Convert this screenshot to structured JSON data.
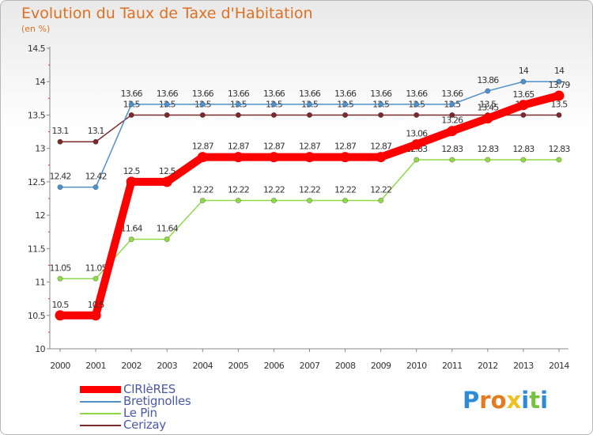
{
  "header": {
    "title": "Evolution du Taux de Taxe d'Habitation",
    "subtitle": "(en %)"
  },
  "brand": {
    "text": "Proxiti",
    "letter_colors": [
      "#2e8bd8",
      "#e87a1e",
      "#e87a1e",
      "#f0c020",
      "#2e8bd8",
      "#7ac142",
      "#2e8bd8"
    ]
  },
  "chart_data": {
    "type": "line",
    "title": "Evolution du Taux de Taxe d'Habitation",
    "ylabel": "(en %)",
    "xlabel": "",
    "ylim": [
      10,
      14.5
    ],
    "yticks": [
      "10",
      "10.5",
      "11",
      "11.5",
      "12",
      "12.5",
      "13",
      "13.5",
      "14",
      "14.5"
    ],
    "categories": [
      "2000",
      "2001",
      "2002",
      "2003",
      "2004",
      "2005",
      "2006",
      "2007",
      "2008",
      "2009",
      "2010",
      "2011",
      "2012",
      "2013",
      "2014"
    ],
    "series": [
      {
        "name": "Cerizay",
        "color": "#7a2a2a",
        "values": [
          13.1,
          13.1,
          13.5,
          13.5,
          13.5,
          13.5,
          13.5,
          13.5,
          13.5,
          13.5,
          13.5,
          13.5,
          13.5,
          13.5,
          13.5
        ],
        "labels": [
          "13.1",
          "13.1",
          "13.5",
          "13.5",
          "13.5",
          "13.5",
          "13.5",
          "13.5",
          "13.5",
          "13.5",
          "13.5",
          "13.5",
          "13.5",
          "13.5",
          "13.5"
        ]
      },
      {
        "name": "Le Pin",
        "color": "#90d848",
        "values": [
          11.05,
          11.05,
          11.64,
          11.64,
          12.22,
          12.22,
          12.22,
          12.22,
          12.22,
          12.22,
          12.83,
          12.83,
          12.83,
          12.83,
          12.83
        ],
        "labels": [
          "11.05",
          "11.05",
          "11.64",
          "11.64",
          "12.22",
          "12.22",
          "12.22",
          "12.22",
          "12.22",
          "12.22",
          "12.83",
          "12.83",
          "12.83",
          "12.83",
          "12.83"
        ]
      },
      {
        "name": "Bretignolles",
        "color": "#5090c8",
        "values": [
          12.42,
          12.42,
          13.66,
          13.66,
          13.66,
          13.66,
          13.66,
          13.66,
          13.66,
          13.66,
          13.66,
          13.66,
          13.86,
          14,
          14
        ],
        "labels": [
          "12.42",
          "12.42",
          "13.66",
          "13.66",
          "13.66",
          "13.66",
          "13.66",
          "13.66",
          "13.66",
          "13.66",
          "13.66",
          "13.66",
          "13.86",
          "14",
          "14"
        ]
      },
      {
        "name": "CIRIèRES",
        "color": "#ff0000",
        "values": [
          10.5,
          10.5,
          12.5,
          12.5,
          12.87,
          12.87,
          12.87,
          12.87,
          12.87,
          12.87,
          13.06,
          13.26,
          13.45,
          13.65,
          13.79
        ],
        "labels": [
          "10.5",
          "10.5",
          "12.5",
          "12.5",
          "12.87",
          "12.87",
          "12.87",
          "12.87",
          "12.87",
          "12.87",
          "13.06",
          "13.26",
          "13.45",
          "13.65",
          "13.79"
        ]
      }
    ],
    "legend": [
      "CIRIèRES",
      "Bretignolles",
      "Le Pin",
      "Cerizay"
    ],
    "grid": false,
    "legend_position": "bottom-left"
  }
}
